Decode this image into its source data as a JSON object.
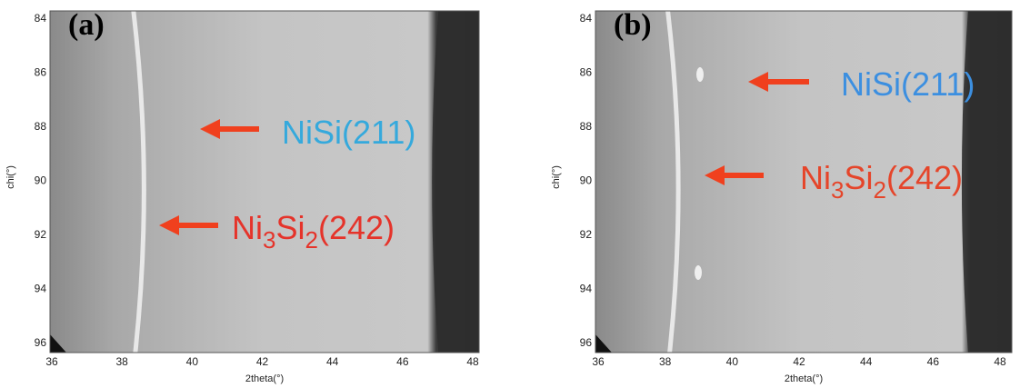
{
  "panels": [
    {
      "label": "(a)",
      "x_axis_label": "2theta(°)",
      "y_axis_label": "chi(°)",
      "xticks": [
        36,
        38,
        40,
        42,
        44,
        46,
        48
      ],
      "yticks": [
        84,
        86,
        88,
        90,
        92,
        94,
        96
      ],
      "annotations": [
        {
          "parts": [
            "NiSi(211)"
          ],
          "color": "#35a9dc"
        },
        {
          "parts": [
            "Ni",
            "3",
            "Si",
            "2",
            "(242)"
          ],
          "color": "#e5332a"
        }
      ]
    },
    {
      "label": "(b)",
      "x_axis_label": "2theta(°)",
      "y_axis_label": "chi(°)",
      "xticks": [
        36,
        38,
        40,
        42,
        44,
        46,
        48
      ],
      "yticks": [
        84,
        86,
        88,
        90,
        92,
        94,
        96
      ],
      "annotations": [
        {
          "parts": [
            "NiSi(211)"
          ],
          "color": "#3c8fe0"
        },
        {
          "parts": [
            "Ni",
            "3",
            "Si",
            "2",
            "(242)"
          ],
          "color": "#e5452a"
        }
      ]
    }
  ]
}
